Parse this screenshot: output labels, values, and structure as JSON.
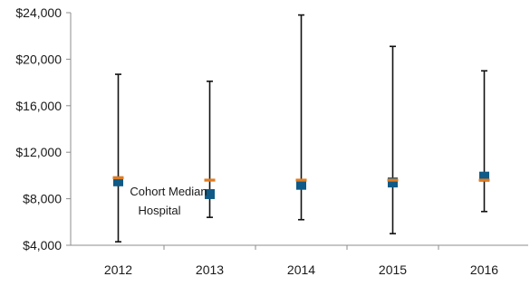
{
  "chart_data": {
    "type": "scatter",
    "categories": [
      "2012",
      "2013",
      "2014",
      "2015",
      "2016"
    ],
    "y_ticks": [
      "$4,000",
      "$8,000",
      "$12,000",
      "$16,000",
      "$20,000",
      "$24,000"
    ],
    "y_tick_values": [
      4000,
      8000,
      12000,
      16000,
      20000,
      24000
    ],
    "ylim": [
      4000,
      24000
    ],
    "grid": false,
    "range_bars": [
      {
        "low": 4300,
        "high": 18700
      },
      {
        "low": 6400,
        "high": 18100
      },
      {
        "low": 6200,
        "high": 23800
      },
      {
        "low": 5000,
        "high": 21100
      },
      {
        "low": 6900,
        "high": 19000
      }
    ],
    "series": [
      {
        "marker": "square",
        "color": "#0f5a87",
        "values": [
          9500,
          8400,
          9200,
          9400,
          9900
        ]
      },
      {
        "marker": "dash",
        "color": "#e07b1f",
        "values": [
          9800,
          9600,
          9600,
          9600,
          9600
        ]
      }
    ],
    "annotation": {
      "line1": "Cohort Median",
      "line2": "Hospital"
    }
  }
}
